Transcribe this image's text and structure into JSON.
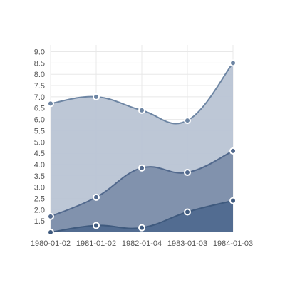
{
  "chart_data": {
    "type": "area",
    "stacked": true,
    "smooth": true,
    "x": [
      "1980-01-02",
      "1981-01-02",
      "1982-01-04",
      "1983-01-03",
      "1984-01-03"
    ],
    "ylim": [
      1.0,
      9.3
    ],
    "yticks": [
      "1.5",
      "2.0",
      "2.5",
      "3.0",
      "3.5",
      "4.0",
      "4.5",
      "5.0",
      "5.5",
      "6.0",
      "6.5",
      "7.0",
      "7.5",
      "8.0",
      "8.5",
      "9.0"
    ],
    "grid": true,
    "legend": "none",
    "series": [
      {
        "values": [
          1.0,
          1.3,
          1.2,
          1.9,
          2.4
        ],
        "fill": "#4f6a8f",
        "stroke": "#3f5a7e",
        "fill_opacity": 0.95
      },
      {
        "values": [
          1.7,
          2.55,
          3.85,
          3.65,
          4.6
        ],
        "fill": "#7d8fab",
        "stroke": "#52698d",
        "fill_opacity": 0.95
      },
      {
        "values": [
          6.7,
          7.0,
          6.4,
          5.95,
          8.5
        ],
        "fill": "#b9c4d4",
        "stroke": "#6d85a3",
        "fill_opacity": 0.95
      }
    ]
  }
}
